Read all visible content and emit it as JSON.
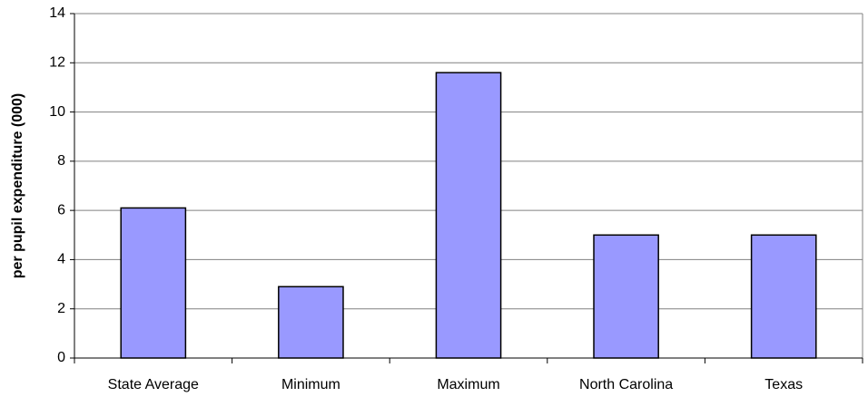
{
  "chart_data": {
    "type": "bar",
    "y_label": "per pupil expenditure (000)",
    "categories": [
      "State Average",
      "Minimum",
      "Maximum",
      "North Carolina",
      "Texas"
    ],
    "values": [
      6.1,
      2.9,
      11.6,
      5.0,
      5.0
    ],
    "color": "#9999ff",
    "ylim": [
      0,
      14
    ],
    "yticks": [
      0,
      2,
      4,
      6,
      8,
      10,
      12,
      14
    ],
    "grid": true
  }
}
